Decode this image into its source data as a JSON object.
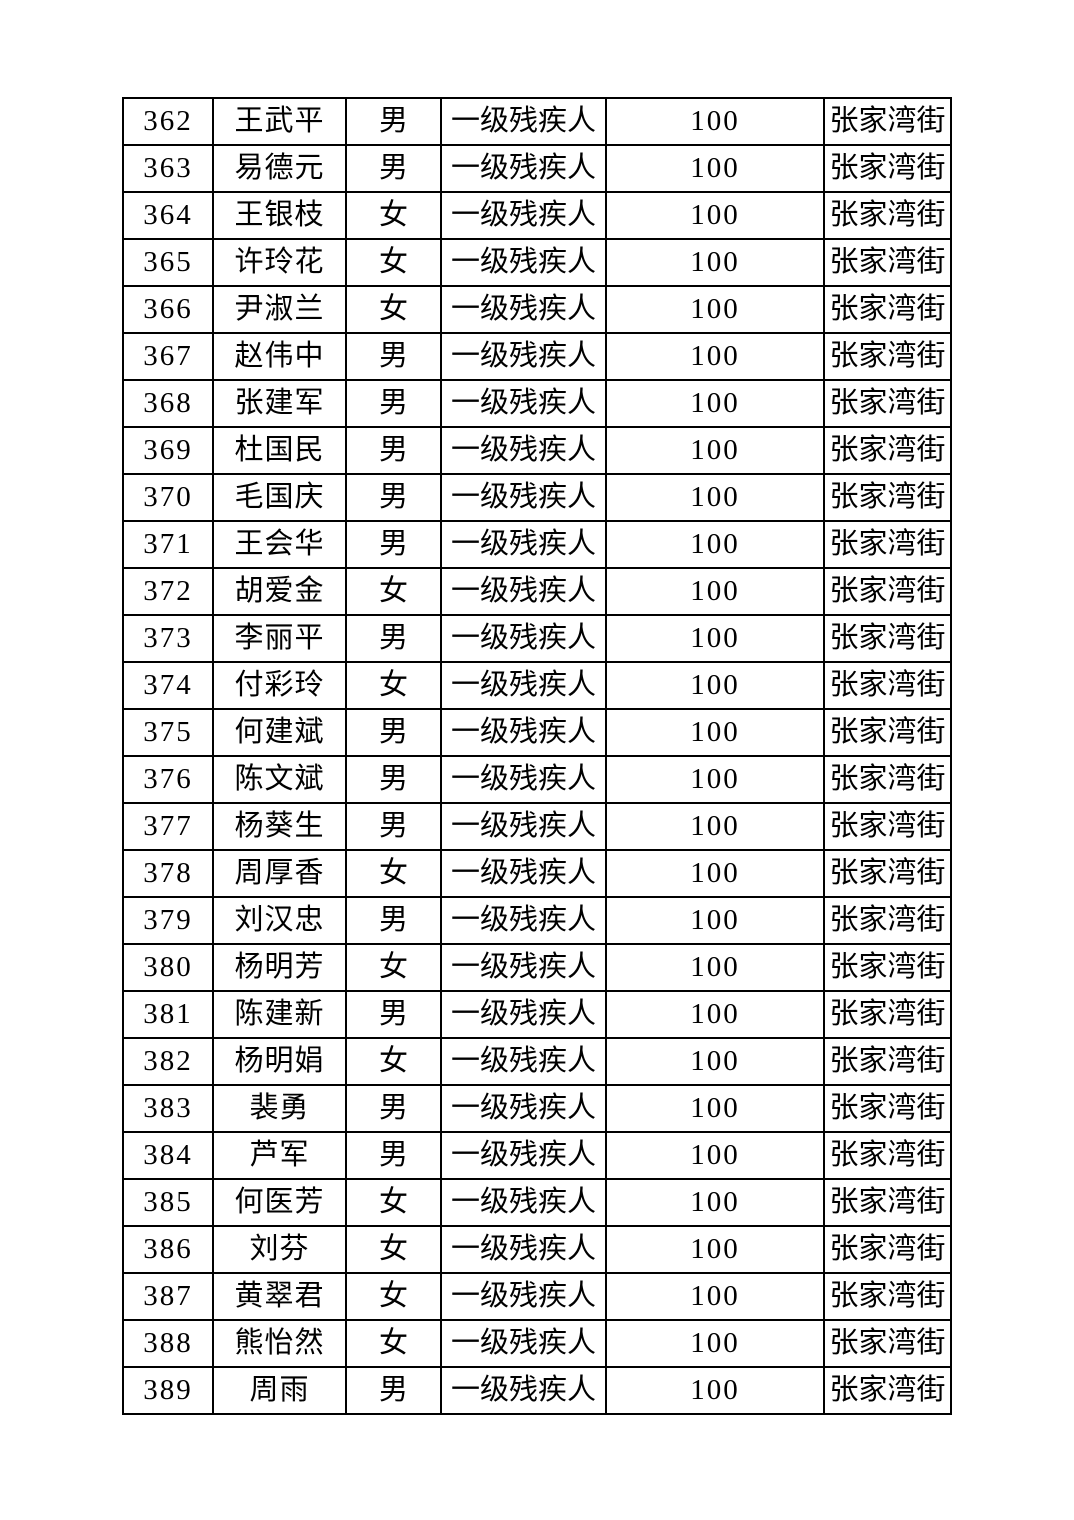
{
  "page": {
    "background_color": "#ffffff",
    "text_color": "#000000",
    "border_color": "#000000"
  },
  "table": {
    "columns": [
      "no",
      "name",
      "gender",
      "category",
      "amount",
      "street"
    ],
    "rows": [
      {
        "no": "362",
        "name": "王武平",
        "gender": "男",
        "category": "一级残疾人",
        "amount": "100",
        "street": "张家湾街"
      },
      {
        "no": "363",
        "name": "易德元",
        "gender": "男",
        "category": "一级残疾人",
        "amount": "100",
        "street": "张家湾街"
      },
      {
        "no": "364",
        "name": "王银枝",
        "gender": "女",
        "category": "一级残疾人",
        "amount": "100",
        "street": "张家湾街"
      },
      {
        "no": "365",
        "name": "许玲花",
        "gender": "女",
        "category": "一级残疾人",
        "amount": "100",
        "street": "张家湾街"
      },
      {
        "no": "366",
        "name": "尹淑兰",
        "gender": "女",
        "category": "一级残疾人",
        "amount": "100",
        "street": "张家湾街"
      },
      {
        "no": "367",
        "name": "赵伟中",
        "gender": "男",
        "category": "一级残疾人",
        "amount": "100",
        "street": "张家湾街"
      },
      {
        "no": "368",
        "name": "张建军",
        "gender": "男",
        "category": "一级残疾人",
        "amount": "100",
        "street": "张家湾街"
      },
      {
        "no": "369",
        "name": "杜国民",
        "gender": "男",
        "category": "一级残疾人",
        "amount": "100",
        "street": "张家湾街"
      },
      {
        "no": "370",
        "name": "毛国庆",
        "gender": "男",
        "category": "一级残疾人",
        "amount": "100",
        "street": "张家湾街"
      },
      {
        "no": "371",
        "name": "王会华",
        "gender": "男",
        "category": "一级残疾人",
        "amount": "100",
        "street": "张家湾街"
      },
      {
        "no": "372",
        "name": "胡爱金",
        "gender": "女",
        "category": "一级残疾人",
        "amount": "100",
        "street": "张家湾街"
      },
      {
        "no": "373",
        "name": "李丽平",
        "gender": "男",
        "category": "一级残疾人",
        "amount": "100",
        "street": "张家湾街"
      },
      {
        "no": "374",
        "name": "付彩玲",
        "gender": "女",
        "category": "一级残疾人",
        "amount": "100",
        "street": "张家湾街"
      },
      {
        "no": "375",
        "name": "何建斌",
        "gender": "男",
        "category": "一级残疾人",
        "amount": "100",
        "street": "张家湾街"
      },
      {
        "no": "376",
        "name": "陈文斌",
        "gender": "男",
        "category": "一级残疾人",
        "amount": "100",
        "street": "张家湾街"
      },
      {
        "no": "377",
        "name": "杨葵生",
        "gender": "男",
        "category": "一级残疾人",
        "amount": "100",
        "street": "张家湾街"
      },
      {
        "no": "378",
        "name": "周厚香",
        "gender": "女",
        "category": "一级残疾人",
        "amount": "100",
        "street": "张家湾街"
      },
      {
        "no": "379",
        "name": "刘汉忠",
        "gender": "男",
        "category": "一级残疾人",
        "amount": "100",
        "street": "张家湾街"
      },
      {
        "no": "380",
        "name": "杨明芳",
        "gender": "女",
        "category": "一级残疾人",
        "amount": "100",
        "street": "张家湾街"
      },
      {
        "no": "381",
        "name": "陈建新",
        "gender": "男",
        "category": "一级残疾人",
        "amount": "100",
        "street": "张家湾街"
      },
      {
        "no": "382",
        "name": "杨明娟",
        "gender": "女",
        "category": "一级残疾人",
        "amount": "100",
        "street": "张家湾街"
      },
      {
        "no": "383",
        "name": "裴勇",
        "gender": "男",
        "category": "一级残疾人",
        "amount": "100",
        "street": "张家湾街"
      },
      {
        "no": "384",
        "name": "芦军",
        "gender": "男",
        "category": "一级残疾人",
        "amount": "100",
        "street": "张家湾街"
      },
      {
        "no": "385",
        "name": "何医芳",
        "gender": "女",
        "category": "一级残疾人",
        "amount": "100",
        "street": "张家湾街"
      },
      {
        "no": "386",
        "name": "刘芬",
        "gender": "女",
        "category": "一级残疾人",
        "amount": "100",
        "street": "张家湾街"
      },
      {
        "no": "387",
        "name": "黄翠君",
        "gender": "女",
        "category": "一级残疾人",
        "amount": "100",
        "street": "张家湾街"
      },
      {
        "no": "388",
        "name": "熊怡然",
        "gender": "女",
        "category": "一级残疾人",
        "amount": "100",
        "street": "张家湾街"
      },
      {
        "no": "389",
        "name": "周雨",
        "gender": "男",
        "category": "一级残疾人",
        "amount": "100",
        "street": "张家湾街"
      }
    ]
  }
}
